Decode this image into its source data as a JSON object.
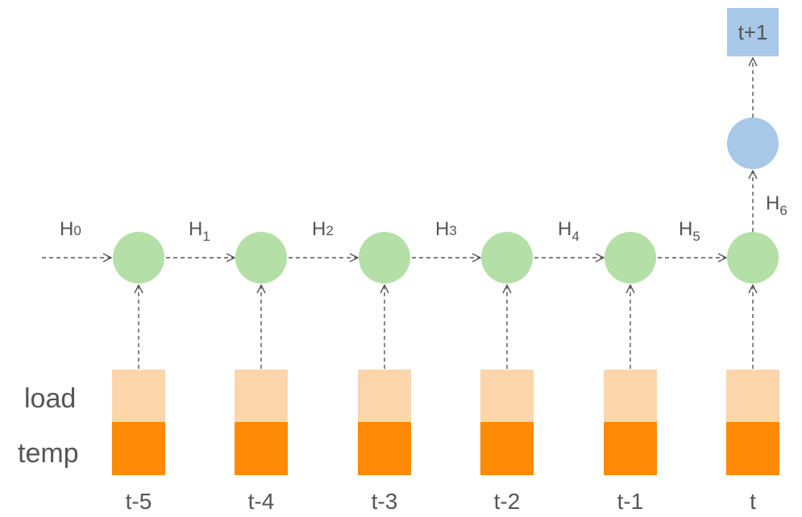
{
  "row_labels": {
    "load": "load",
    "temp": "temp"
  },
  "hidden_states": [
    {
      "base": "H",
      "sub": "0"
    },
    {
      "base": "H",
      "sub": "1"
    },
    {
      "base": "H",
      "sub": "2"
    },
    {
      "base": "H",
      "sub": "3"
    },
    {
      "base": "H",
      "sub": "4"
    },
    {
      "base": "H",
      "sub": "5"
    },
    {
      "base": "H",
      "sub": "6"
    }
  ],
  "time_steps": [
    "t-5",
    "t-4",
    "t-3",
    "t-2",
    "t-1",
    "t"
  ],
  "output": {
    "label": "t+1"
  },
  "colors": {
    "cell": "#b4dfa7",
    "output_node": "#a7c8e6",
    "output_box": "#a7c8e6",
    "load_box": "#fdd5ab",
    "temp_box": "#fe8a05",
    "arrow": "#555555",
    "text": "#555555"
  }
}
